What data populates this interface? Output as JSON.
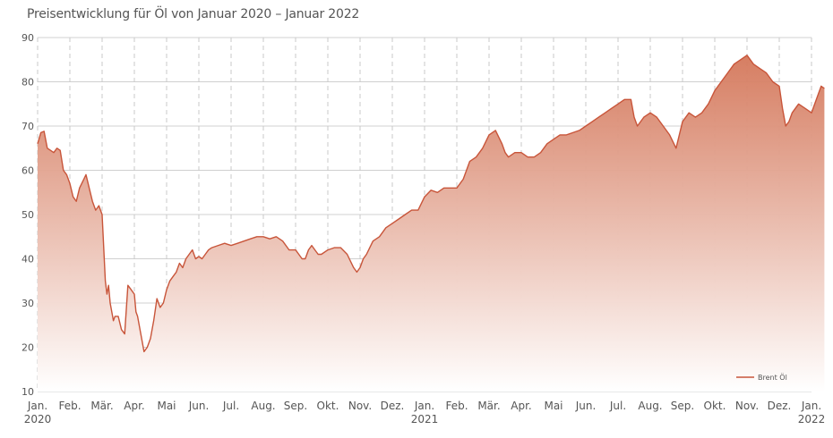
{
  "title": "Preisentwicklung für Öl von Januar 2020 – Januar 2022",
  "colors": {
    "line": "#c8553a",
    "fill_top": "#d4775a",
    "fill_bottom": "#ffffff",
    "grid": "#d0d0d0",
    "axis_text": "#555555"
  },
  "chart_data": {
    "type": "area",
    "title": "Preisentwicklung für Öl von Januar 2020 – Januar 2022",
    "xlabel": "",
    "ylabel": "",
    "ylim": [
      10,
      90
    ],
    "yticks": [
      10,
      20,
      30,
      40,
      50,
      60,
      70,
      80,
      90
    ],
    "grid": true,
    "legend_position": "bottom-right",
    "x_tick_labels": [
      {
        "month": 0,
        "label": "Jan.",
        "year": "2020"
      },
      {
        "month": 1,
        "label": "Feb."
      },
      {
        "month": 2,
        "label": "Mär."
      },
      {
        "month": 3,
        "label": "Apr."
      },
      {
        "month": 4,
        "label": "Mai"
      },
      {
        "month": 5,
        "label": "Jun."
      },
      {
        "month": 6,
        "label": "Jul."
      },
      {
        "month": 7,
        "label": "Aug."
      },
      {
        "month": 8,
        "label": "Sep."
      },
      {
        "month": 9,
        "label": "Okt."
      },
      {
        "month": 10,
        "label": "Nov."
      },
      {
        "month": 11,
        "label": "Dez."
      },
      {
        "month": 12,
        "label": "Jan.",
        "year": "2021"
      },
      {
        "month": 13,
        "label": "Feb."
      },
      {
        "month": 14,
        "label": "Mär."
      },
      {
        "month": 15,
        "label": "Apr."
      },
      {
        "month": 16,
        "label": "Mai"
      },
      {
        "month": 17,
        "label": "Jun."
      },
      {
        "month": 18,
        "label": "Jul."
      },
      {
        "month": 19,
        "label": "Aug."
      },
      {
        "month": 20,
        "label": "Sep."
      },
      {
        "month": 21,
        "label": "Okt."
      },
      {
        "month": 22,
        "label": "Nov."
      },
      {
        "month": 23,
        "label": "Dez."
      },
      {
        "month": 24,
        "label": "Jan.",
        "year": "2022"
      }
    ],
    "series": [
      {
        "name": "Brent Öl",
        "x": [
          0.0,
          0.1,
          0.2,
          0.3,
          0.4,
          0.5,
          0.6,
          0.7,
          0.8,
          0.9,
          1.0,
          1.1,
          1.2,
          1.3,
          1.4,
          1.5,
          1.6,
          1.7,
          1.8,
          1.9,
          2.0,
          2.1,
          2.15,
          2.2,
          2.25,
          2.3,
          2.35,
          2.4,
          2.5,
          2.6,
          2.7,
          2.8,
          2.9,
          3.0,
          3.05,
          3.1,
          3.2,
          3.3,
          3.4,
          3.45,
          3.5,
          3.6,
          3.7,
          3.8,
          3.9,
          4.0,
          4.1,
          4.2,
          4.3,
          4.4,
          4.5,
          4.6,
          4.7,
          4.8,
          4.9,
          5.0,
          5.1,
          5.2,
          5.3,
          5.4,
          5.6,
          5.8,
          6.0,
          6.2,
          6.4,
          6.6,
          6.8,
          7.0,
          7.2,
          7.4,
          7.6,
          7.8,
          8.0,
          8.1,
          8.2,
          8.3,
          8.4,
          8.5,
          8.6,
          8.7,
          8.8,
          9.0,
          9.2,
          9.4,
          9.6,
          9.8,
          9.9,
          10.0,
          10.1,
          10.2,
          10.3,
          10.4,
          10.6,
          10.8,
          11.0,
          11.2,
          11.4,
          11.6,
          11.8,
          12.0,
          12.2,
          12.4,
          12.6,
          12.8,
          13.0,
          13.2,
          13.4,
          13.6,
          13.8,
          14.0,
          14.2,
          14.4,
          14.5,
          14.6,
          14.8,
          15.0,
          15.2,
          15.4,
          15.6,
          15.8,
          16.0,
          16.2,
          16.4,
          16.6,
          16.8,
          17.0,
          17.2,
          17.4,
          17.6,
          17.8,
          18.0,
          18.2,
          18.4,
          18.5,
          18.6,
          18.8,
          19.0,
          19.2,
          19.4,
          19.6,
          19.8,
          20.0,
          20.2,
          20.4,
          20.6,
          20.8,
          21.0,
          21.2,
          21.4,
          21.6,
          21.8,
          22.0,
          22.2,
          22.4,
          22.6,
          22.8,
          23.0,
          23.1,
          23.2,
          23.3,
          23.4,
          23.6,
          23.8,
          24.0,
          24.2,
          24.3,
          24.4
        ],
        "values": [
          66,
          68.5,
          68.8,
          65,
          64.5,
          64,
          65,
          64.5,
          60,
          59,
          57,
          54,
          53,
          56,
          57.5,
          59,
          56,
          53,
          51,
          52,
          50,
          35,
          32,
          34,
          30,
          28,
          26,
          27,
          27,
          24,
          23,
          34,
          33,
          32,
          28,
          27,
          23,
          19,
          20,
          21,
          22,
          26,
          31,
          29,
          30,
          33,
          35,
          36,
          37,
          39,
          38,
          40,
          41,
          42,
          40,
          40.5,
          40,
          41,
          42,
          42.5,
          43,
          43.5,
          43,
          43.5,
          44,
          44.5,
          45,
          45,
          44.5,
          45,
          44,
          42,
          42,
          41,
          40,
          40,
          42,
          43,
          42,
          41,
          41,
          42,
          42.5,
          42.5,
          41,
          38,
          37,
          38,
          40,
          41,
          42.5,
          44,
          45,
          47,
          48,
          49,
          50,
          51,
          51,
          54,
          55.5,
          55,
          56,
          56,
          56,
          58,
          62,
          63,
          65,
          68,
          69,
          66,
          64,
          63,
          64,
          64,
          63,
          63,
          64,
          66,
          67,
          68,
          68,
          68.5,
          69,
          70,
          71,
          72,
          73,
          74,
          75,
          76,
          76,
          72,
          70,
          72,
          73,
          72,
          70,
          68,
          65,
          71,
          73,
          72,
          73,
          75,
          78,
          80,
          82,
          84,
          85,
          86,
          84,
          83,
          82,
          80,
          79,
          74,
          70,
          71,
          73,
          75,
          74,
          73,
          77,
          79,
          78.5
        ]
      }
    ]
  }
}
